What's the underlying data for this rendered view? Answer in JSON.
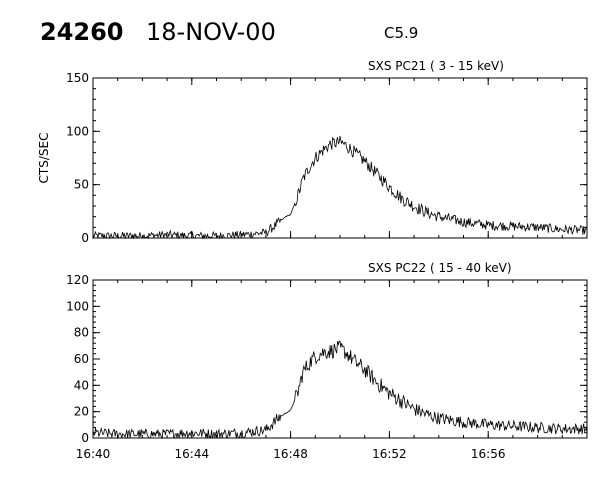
{
  "header": {
    "event_id": "24260",
    "date": "18-NOV-00",
    "flare_class": "C5.9"
  },
  "chart_data": [
    {
      "type": "line",
      "title": "SXS PC21  (  3 - 15 keV)",
      "ylabel": "CTS/SEC",
      "xlabel": "",
      "xlim": [
        "16:40",
        "17:00"
      ],
      "ylim": [
        0,
        150
      ],
      "yticks": [
        "0",
        "50",
        "100",
        "150"
      ],
      "xticks": [
        "16:40",
        "16:44",
        "16:48",
        "16:52",
        "16:56"
      ],
      "grid": false,
      "series": [
        {
          "color": "#000000",
          "x_minutes_after_1640": [
            0,
            1,
            2,
            3,
            4,
            5,
            6,
            7,
            7.5,
            7.8,
            8,
            8.3,
            8.5,
            8.8,
            9,
            9.3,
            9.6,
            10,
            10.3,
            10.6,
            11,
            11.5,
            12,
            12.5,
            13,
            13.5,
            14,
            15,
            16,
            17,
            18,
            19,
            20
          ],
          "values": [
            2,
            2,
            2,
            3,
            2,
            2,
            3,
            5,
            14,
            20,
            22,
            40,
            55,
            68,
            75,
            82,
            88,
            90,
            86,
            80,
            72,
            60,
            48,
            37,
            30,
            24,
            20,
            15,
            12,
            11,
            10,
            8,
            7
          ],
          "noise": 6
        }
      ]
    },
    {
      "type": "line",
      "title": "SXS PC22  ( 15 - 40 keV)",
      "ylabel": "",
      "xlabel": "",
      "xlim": [
        "16:40",
        "17:00"
      ],
      "ylim": [
        0,
        120
      ],
      "yticks": [
        "0",
        "20",
        "40",
        "60",
        "80",
        "100",
        "120"
      ],
      "xticks": [
        "16:40",
        "16:44",
        "16:48",
        "16:52",
        "16:56"
      ],
      "grid": false,
      "series": [
        {
          "color": "#000000",
          "x_minutes_after_1640": [
            0,
            1,
            2,
            3,
            4,
            5,
            6,
            7,
            7.5,
            7.8,
            8,
            8.3,
            8.5,
            8.8,
            9,
            9.3,
            9.6,
            10,
            10.3,
            10.6,
            11,
            11.5,
            12,
            12.5,
            13,
            13.5,
            14,
            15,
            16,
            17,
            18,
            19,
            20
          ],
          "values": [
            4,
            3,
            3,
            3,
            4,
            3,
            4,
            6,
            15,
            19,
            21,
            35,
            50,
            58,
            62,
            65,
            66,
            68,
            64,
            58,
            52,
            42,
            34,
            28,
            22,
            18,
            15,
            12,
            10,
            9,
            8,
            7,
            7
          ],
          "noise": 6
        }
      ]
    }
  ]
}
